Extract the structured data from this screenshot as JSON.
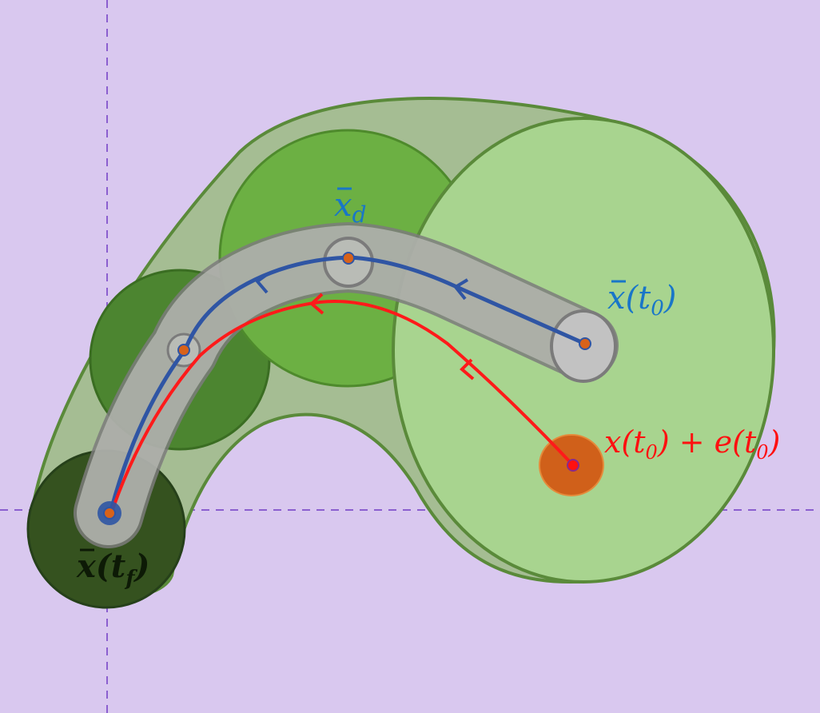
{
  "labels": {
    "x_d": "x̄_d",
    "x_t0": "x̄(t₀)",
    "x_tf": "x̄(t_f)",
    "perturbed": "x(t₀) + e(t₀)"
  },
  "label_parts": {
    "x_d": {
      "base": "x",
      "sub": "d"
    },
    "x_t0": {
      "base": "x",
      "open": "(t",
      "sub": "0",
      "close": ")"
    },
    "x_tf": {
      "base": "x",
      "open": "(t",
      "sub": "f",
      "close": ")"
    },
    "perturbed": {
      "a": "x(t",
      "sub1": "0",
      "b": ") + e(t",
      "sub2": "0",
      "c": ")"
    }
  },
  "colors": {
    "background": "#d9c8ef",
    "axis": "#8b5fcf",
    "funnel_fill": "#a5bd93",
    "funnel_stroke": "#5a8a3a",
    "ball_large": "#a8d48f",
    "ball_mid": "#6cb043",
    "ball_small": "#4c8530",
    "ball_final": "#35521f",
    "tube_fill": "#b9bcb6",
    "tube_stroke": "#7b7b7b",
    "nominal_path": "#2f55a4",
    "actual_path": "#ff1a1a",
    "point": "#d8621a",
    "perturb_disk": "#d0601a",
    "label_blue": "#1976c8",
    "label_red": "#ff1010",
    "label_dark": "#0d1a06"
  }
}
